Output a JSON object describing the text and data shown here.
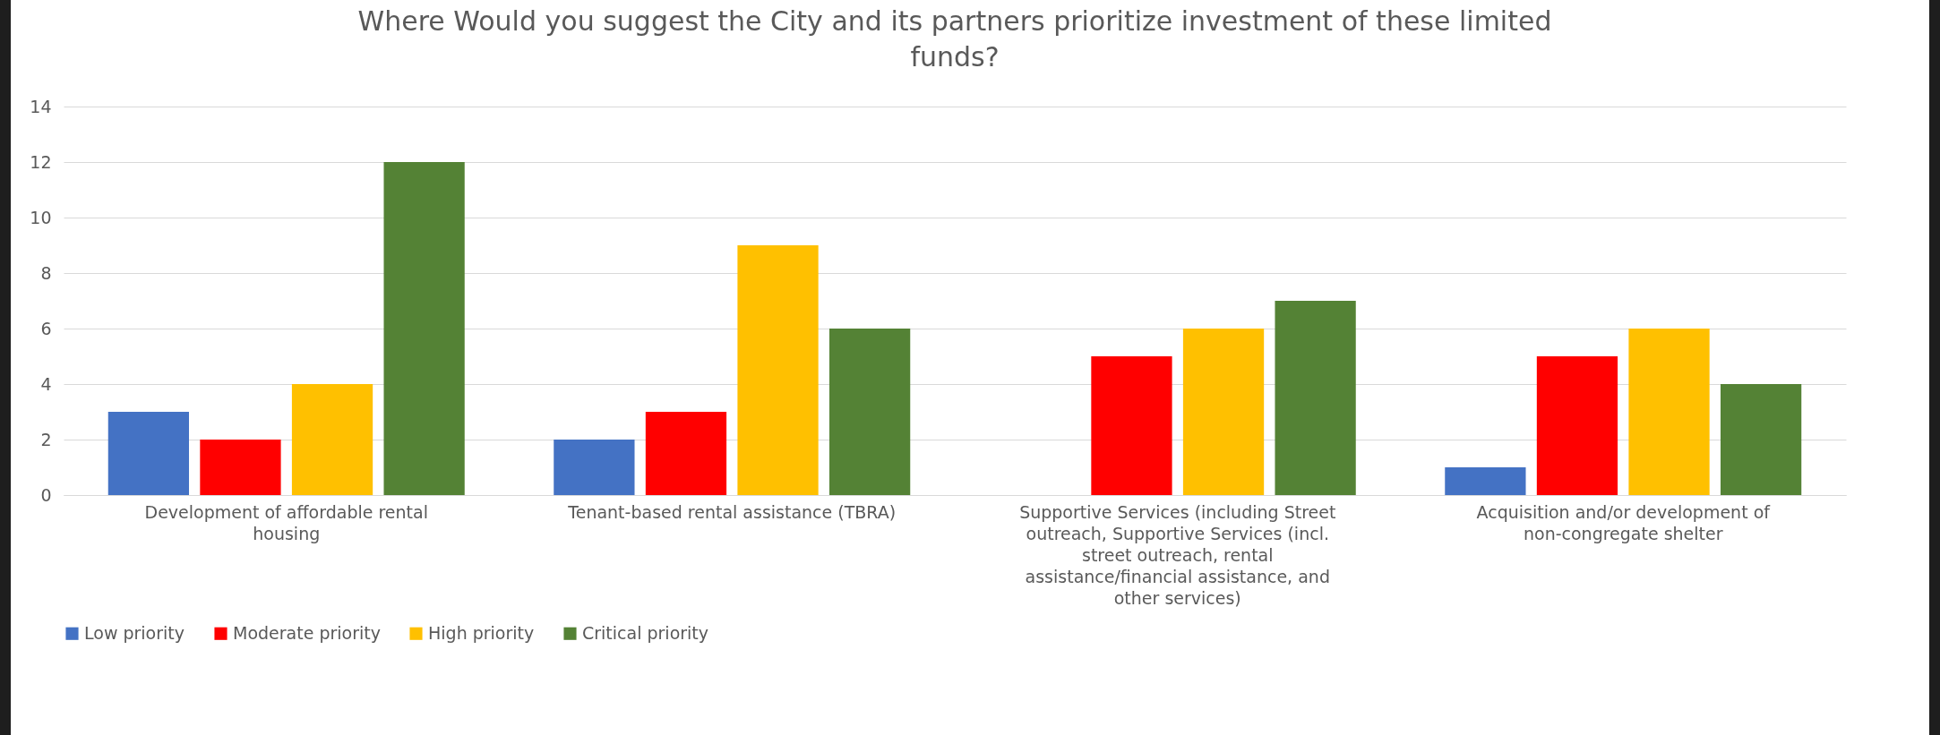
{
  "chart_data": {
    "type": "bar",
    "title": "Where Would you suggest the City and its partners prioritize investment of these limited funds?",
    "categories": [
      "Development of affordable rental housing",
      "Tenant-based rental assistance (TBRA)",
      "Supportive Services (including Street outreach, Supportive Services (incl. street outreach, rental assistance/financial assistance, and other services)",
      "Acquisition and/or development of non-congregate shelter"
    ],
    "series": [
      {
        "name": "Low priority",
        "color": "#4472c4",
        "values": [
          3,
          2,
          null,
          1
        ]
      },
      {
        "name": "Moderate priority",
        "color": "#ff0000",
        "values": [
          2,
          3,
          5,
          5
        ]
      },
      {
        "name": "High priority",
        "color": "#ffc000",
        "values": [
          4,
          9,
          6,
          6
        ]
      },
      {
        "name": "Critical priority",
        "color": "#548235",
        "values": [
          12,
          6,
          7,
          4
        ]
      }
    ],
    "ylim": [
      0,
      14
    ],
    "yticks": [
      0,
      2,
      4,
      6,
      8,
      10,
      12,
      14
    ],
    "grid": "y",
    "legend": "bottom"
  }
}
